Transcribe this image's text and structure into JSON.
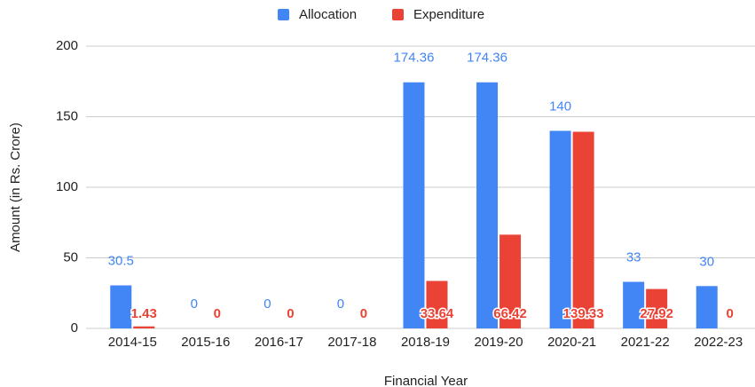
{
  "chart_data": {
    "type": "bar",
    "x_label": "Financial Year",
    "y_label": "Amount (in Rs. Crore)",
    "categories": [
      "2014-15",
      "2015-16",
      "2016-17",
      "2017-18",
      "2018-19",
      "2019-20",
      "2020-21",
      "2021-22",
      "2022-23"
    ],
    "series": [
      {
        "name": "Allocation",
        "color": "#4285f4",
        "values": [
          30.5,
          0,
          0,
          0,
          174.36,
          174.36,
          140,
          33,
          30
        ]
      },
      {
        "name": "Expenditure",
        "color": "#ea4335",
        "values": [
          1.43,
          0,
          0,
          0,
          33.64,
          66.42,
          139.33,
          27.92,
          0
        ]
      }
    ],
    "ylim": [
      0,
      200
    ],
    "yticks": [
      0,
      50,
      100,
      150,
      200
    ],
    "grid": true,
    "legend": "top"
  }
}
